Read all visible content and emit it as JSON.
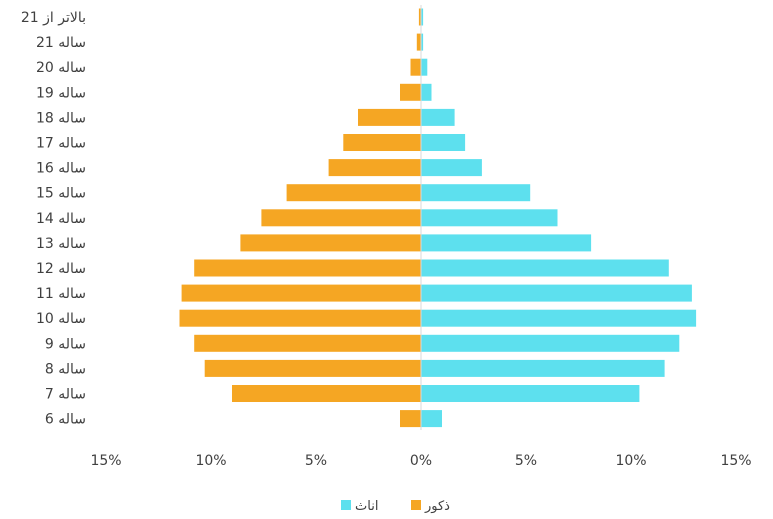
{
  "chart_data": {
    "type": "bar",
    "orientation": "horizontal",
    "style": "population-pyramid",
    "categories": [
      "بالاتر از 21",
      "21 ساله",
      "20 ساله",
      "19 ساله",
      "18 ساله",
      "17 ساله",
      "16 ساله",
      "15 ساله",
      "14 ساله",
      "13 ساله",
      "12 ساله",
      "11 ساله",
      "10 ساله",
      "9 ساله",
      "8 ساله",
      "7 ساله",
      "6 ساله"
    ],
    "series": [
      {
        "name": "ذکور",
        "color": "#F5A623",
        "side": "left",
        "values": [
          0.1,
          0.2,
          0.5,
          1.0,
          3.0,
          3.7,
          4.4,
          6.4,
          7.6,
          8.6,
          10.8,
          11.4,
          11.5,
          10.8,
          10.3,
          9.0,
          1.0
        ]
      },
      {
        "name": "اناث",
        "color": "#5DE0EE",
        "side": "right",
        "values": [
          0.1,
          0.1,
          0.3,
          0.5,
          1.6,
          2.1,
          2.9,
          5.2,
          6.5,
          8.1,
          11.8,
          12.9,
          13.1,
          12.3,
          11.6,
          10.4,
          1.0
        ]
      }
    ],
    "xlim": [
      -15,
      15
    ],
    "xticks": [
      -15,
      -10,
      -5,
      0,
      5,
      10,
      15
    ],
    "xtick_labels": [
      "15%",
      "10%",
      "5%",
      "0%",
      "5%",
      "10%",
      "15%"
    ],
    "grid": false,
    "legend_position": "bottom-center"
  }
}
